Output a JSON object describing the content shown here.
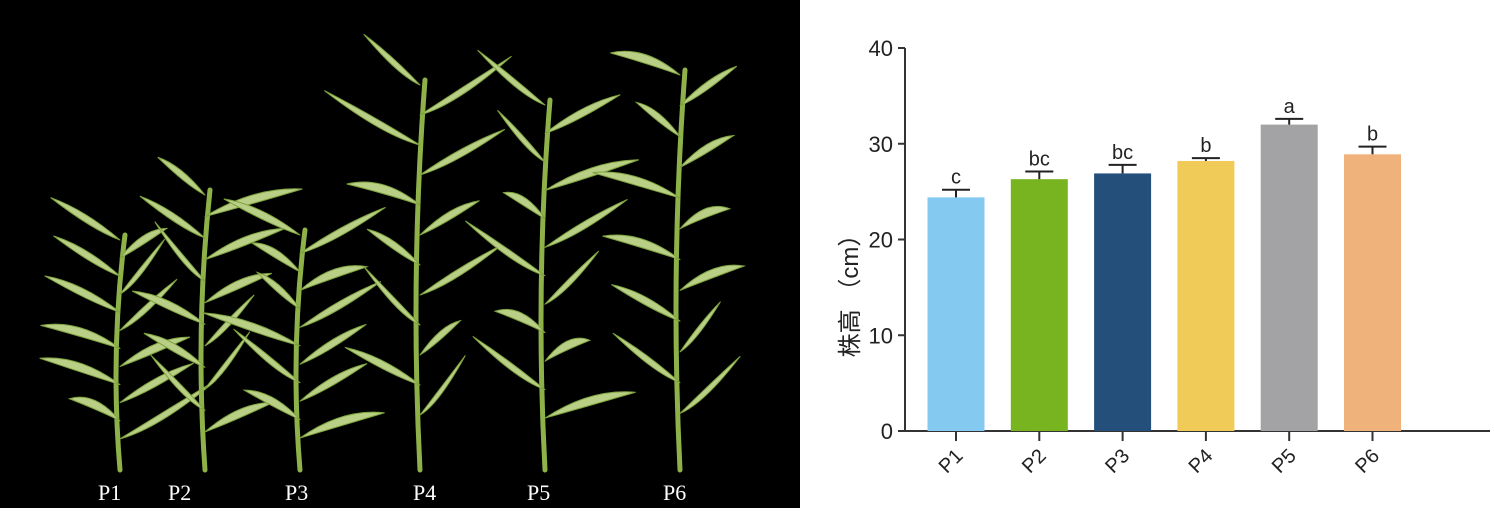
{
  "photo": {
    "labels": [
      "P1",
      "P2",
      "P3",
      "P4",
      "P5",
      "P6"
    ]
  },
  "chart_data": {
    "type": "bar",
    "categories": [
      "P1",
      "P2",
      "P3",
      "P4",
      "P5",
      "P6"
    ],
    "values": [
      24.4,
      26.3,
      26.9,
      28.2,
      32.0,
      28.9
    ],
    "errors": [
      0.8,
      0.8,
      0.9,
      0.3,
      0.6,
      0.8
    ],
    "significance_letters": [
      "c",
      "bc",
      "bc",
      "b",
      "a",
      "b"
    ],
    "colors": [
      "#83C9F0",
      "#78B420",
      "#244F7A",
      "#F1CB57",
      "#A3A2A5",
      "#EFB27B"
    ],
    "title": "",
    "xlabel": "",
    "ylabel": "株高 （cm）",
    "ylim": [
      0,
      40
    ],
    "yticks": [
      "0",
      "10",
      "20",
      "30",
      "40"
    ],
    "grid": false
  }
}
